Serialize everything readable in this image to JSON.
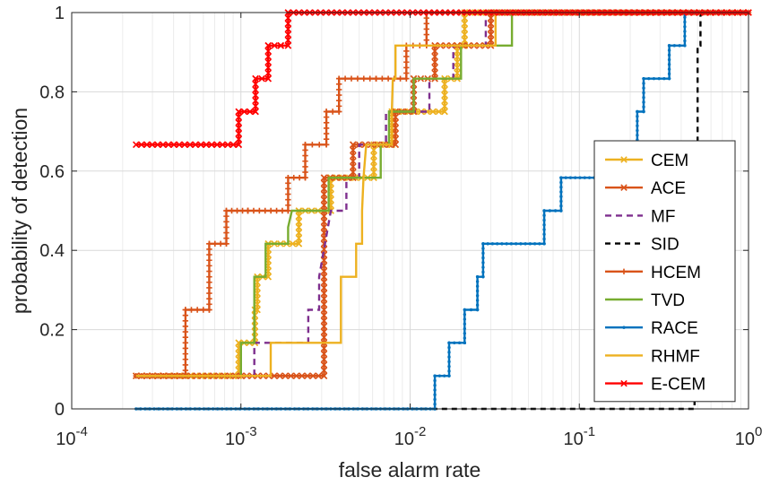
{
  "chart_data": {
    "type": "line",
    "xlabel": "false alarm rate",
    "ylabel": "probability of detection",
    "xscale": "log",
    "xlim": [
      0.0001,
      1
    ],
    "ylim": [
      0,
      1
    ],
    "x_ticks": [
      {
        "base": "10",
        "exp": "-4"
      },
      {
        "base": "10",
        "exp": "-3"
      },
      {
        "base": "10",
        "exp": "-2"
      },
      {
        "base": "10",
        "exp": "-1"
      },
      {
        "base": "10",
        "exp": "0"
      }
    ],
    "y_ticks": [
      "0",
      "0.2",
      "0.4",
      "0.6",
      "0.8",
      "1"
    ],
    "grid": true,
    "legend_position": "bottom-right",
    "series": [
      {
        "name": "CEM",
        "color": "#EDB120",
        "marker": "x",
        "dash": "",
        "points": [
          [
            0.00024,
            0.0833
          ],
          [
            0.00097,
            0.0833
          ],
          [
            0.00097,
            0.1667
          ],
          [
            0.00121,
            0.1667
          ],
          [
            0.00121,
            0.25
          ],
          [
            0.00125,
            0.25
          ],
          [
            0.00125,
            0.3333
          ],
          [
            0.00145,
            0.3333
          ],
          [
            0.00145,
            0.4167
          ],
          [
            0.0022,
            0.4167
          ],
          [
            0.0022,
            0.5
          ],
          [
            0.0034,
            0.5
          ],
          [
            0.0034,
            0.5833
          ],
          [
            0.0061,
            0.5833
          ],
          [
            0.0061,
            0.6667
          ],
          [
            0.0078,
            0.6667
          ],
          [
            0.0078,
            0.75
          ],
          [
            0.016,
            0.75
          ],
          [
            0.016,
            0.8333
          ],
          [
            0.019,
            0.8333
          ],
          [
            0.019,
            0.9167
          ],
          [
            0.021,
            0.9167
          ],
          [
            0.021,
            1
          ],
          [
            1,
            1
          ]
        ]
      },
      {
        "name": "ACE",
        "color": "#D95319",
        "marker": "x",
        "dash": "",
        "points": [
          [
            0.00024,
            0.0833
          ],
          [
            0.0031,
            0.0833
          ],
          [
            0.0031,
            0.5833
          ],
          [
            0.0046,
            0.5833
          ],
          [
            0.0046,
            0.6667
          ],
          [
            0.0082,
            0.6667
          ],
          [
            0.0082,
            0.75
          ],
          [
            0.0105,
            0.75
          ],
          [
            0.0105,
            0.8333
          ],
          [
            0.014,
            0.8333
          ],
          [
            0.014,
            0.9167
          ],
          [
            0.03,
            0.9167
          ],
          [
            0.03,
            1
          ],
          [
            1,
            1
          ]
        ]
      },
      {
        "name": "MF",
        "color": "#7E2F8E",
        "marker": "",
        "dash": "7,5",
        "points": [
          [
            0.00024,
            0.0833
          ],
          [
            0.0012,
            0.0833
          ],
          [
            0.0012,
            0.1667
          ],
          [
            0.0025,
            0.1667
          ],
          [
            0.0025,
            0.25
          ],
          [
            0.0029,
            0.25
          ],
          [
            0.0029,
            0.3333
          ],
          [
            0.0034,
            0.5
          ],
          [
            0.0042,
            0.5
          ],
          [
            0.0042,
            0.5833
          ],
          [
            0.005,
            0.5833
          ],
          [
            0.005,
            0.6667
          ],
          [
            0.0072,
            0.6667
          ],
          [
            0.0072,
            0.75
          ],
          [
            0.013,
            0.75
          ],
          [
            0.013,
            0.8333
          ],
          [
            0.018,
            0.8333
          ],
          [
            0.018,
            0.9167
          ],
          [
            0.028,
            0.9167
          ],
          [
            0.028,
            1
          ],
          [
            1,
            1
          ]
        ]
      },
      {
        "name": "SID",
        "color": "#000000",
        "marker": "",
        "dash": "6,5",
        "points": [
          [
            0.00024,
            0
          ],
          [
            0.3,
            0
          ],
          [
            0.3,
            0.0001
          ],
          [
            0.48,
            0.0001
          ],
          [
            0.48,
            0.6667
          ],
          [
            0.5,
            0.6667
          ],
          [
            0.5,
            0.9167
          ],
          [
            0.52,
            0.9167
          ],
          [
            0.52,
            1
          ],
          [
            1,
            1
          ]
        ]
      },
      {
        "name": "HCEM",
        "color": "#D95319",
        "marker": "+",
        "dash": "",
        "points": [
          [
            0.00024,
            0.0833
          ],
          [
            0.00047,
            0.0833
          ],
          [
            0.00047,
            0.25
          ],
          [
            0.00065,
            0.25
          ],
          [
            0.00065,
            0.4167
          ],
          [
            0.00082,
            0.4167
          ],
          [
            0.00082,
            0.5
          ],
          [
            0.0011,
            0.5
          ],
          [
            0.0011,
            0.5
          ],
          [
            0.0019,
            0.5
          ],
          [
            0.0019,
            0.5833
          ],
          [
            0.0024,
            0.5833
          ],
          [
            0.0024,
            0.6667
          ],
          [
            0.0032,
            0.6667
          ],
          [
            0.0032,
            0.75
          ],
          [
            0.0038,
            0.75
          ],
          [
            0.0038,
            0.8333
          ],
          [
            0.0063,
            0.8333
          ],
          [
            0.0063,
            0.8333
          ],
          [
            0.0095,
            0.8333
          ],
          [
            0.0095,
            0.9167
          ],
          [
            0.0125,
            0.9167
          ],
          [
            0.0125,
            1
          ],
          [
            1,
            1
          ]
        ]
      },
      {
        "name": "TVD",
        "color": "#77AC30",
        "marker": "",
        "dash": "",
        "points": [
          [
            0.00024,
            0.0833
          ],
          [
            0.001,
            0.0833
          ],
          [
            0.001,
            0.1667
          ],
          [
            0.0012,
            0.1667
          ],
          [
            0.0012,
            0.3333
          ],
          [
            0.0014,
            0.3333
          ],
          [
            0.0014,
            0.4167
          ],
          [
            0.0019,
            0.4167
          ],
          [
            0.0019,
            0.4583
          ],
          [
            0.002,
            0.5
          ],
          [
            0.0033,
            0.5
          ],
          [
            0.0033,
            0.5833
          ],
          [
            0.0067,
            0.5833
          ],
          [
            0.0067,
            0.6667
          ],
          [
            0.0075,
            0.6667
          ],
          [
            0.0075,
            0.75
          ],
          [
            0.0105,
            0.75
          ],
          [
            0.0105,
            0.8333
          ],
          [
            0.02,
            0.8333
          ],
          [
            0.02,
            0.9167
          ],
          [
            0.04,
            0.9167
          ],
          [
            0.04,
            1
          ],
          [
            1,
            1
          ]
        ]
      },
      {
        "name": "RACE",
        "color": "#0072BD",
        "marker": ".",
        "dash": "",
        "points": [
          [
            0.00024,
            0
          ],
          [
            0.014,
            0
          ],
          [
            0.014,
            0.0833
          ],
          [
            0.017,
            0.0833
          ],
          [
            0.017,
            0.1667
          ],
          [
            0.021,
            0.1667
          ],
          [
            0.021,
            0.25
          ],
          [
            0.025,
            0.25
          ],
          [
            0.025,
            0.3333
          ],
          [
            0.027,
            0.3333
          ],
          [
            0.027,
            0.4167
          ],
          [
            0.062,
            0.4167
          ],
          [
            0.062,
            0.5
          ],
          [
            0.078,
            0.5
          ],
          [
            0.078,
            0.5833
          ],
          [
            0.18,
            0.5833
          ],
          [
            0.18,
            0.6667
          ],
          [
            0.22,
            0.6667
          ],
          [
            0.22,
            0.75
          ],
          [
            0.24,
            0.75
          ],
          [
            0.24,
            0.8333
          ],
          [
            0.34,
            0.8333
          ],
          [
            0.34,
            0.9167
          ],
          [
            0.42,
            0.9167
          ],
          [
            0.42,
            1
          ],
          [
            1,
            1
          ]
        ]
      },
      {
        "name": "RHMF",
        "color": "#EDB120",
        "marker": "",
        "dash": "",
        "points": [
          [
            0.00024,
            0.0833
          ],
          [
            0.0015,
            0.0833
          ],
          [
            0.0015,
            0.1667
          ],
          [
            0.0039,
            0.1667
          ],
          [
            0.0039,
            0.3333
          ],
          [
            0.0048,
            0.3333
          ],
          [
            0.0048,
            0.4167
          ],
          [
            0.0052,
            0.4167
          ],
          [
            0.0052,
            0.5
          ],
          [
            0.0053,
            0.5833
          ],
          [
            0.0055,
            0.6667
          ],
          [
            0.0078,
            0.6667
          ],
          [
            0.0078,
            0.75
          ],
          [
            0.0079,
            0.8333
          ],
          [
            0.0082,
            0.8333
          ],
          [
            0.0082,
            0.9167
          ],
          [
            0.032,
            0.9167
          ],
          [
            0.032,
            1
          ],
          [
            1,
            1
          ]
        ]
      },
      {
        "name": "E-CEM",
        "color": "#FF0000",
        "marker": "x",
        "dash": "",
        "points": [
          [
            0.00024,
            0.6667
          ],
          [
            0.00097,
            0.6667
          ],
          [
            0.00097,
            0.75
          ],
          [
            0.00122,
            0.75
          ],
          [
            0.00122,
            0.8333
          ],
          [
            0.00145,
            0.8333
          ],
          [
            0.00145,
            0.9167
          ],
          [
            0.00172,
            0.9167
          ],
          [
            0.00172,
            0.9167
          ],
          [
            0.0019,
            0.9167
          ],
          [
            0.0019,
            1
          ],
          [
            1,
            1
          ]
        ]
      }
    ]
  }
}
